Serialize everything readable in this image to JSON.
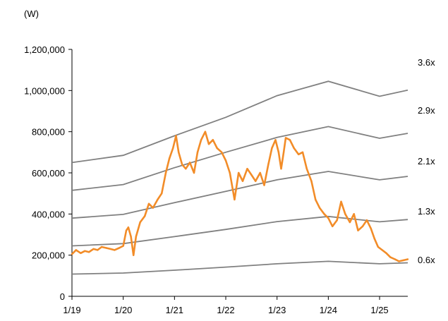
{
  "chart_data": {
    "type": "line",
    "unit_label": "(W)",
    "x_ticks": [
      "1/19",
      "1/20",
      "1/21",
      "1/22",
      "1/23",
      "1/24",
      "1/25"
    ],
    "x_range": [
      2019.0,
      2025.55
    ],
    "y_ticks": [
      0,
      200000,
      400000,
      600000,
      800000,
      1000000,
      1200000
    ],
    "y_tick_labels": [
      "0",
      "200,000",
      "400,000",
      "600,000",
      "800,000",
      "1,000,000",
      "1,200,000"
    ],
    "ylim": [
      0,
      1200000
    ],
    "grid": false,
    "legend": "none",
    "price_series": {
      "color": "#F28C28",
      "points": [
        [
          2019.0,
          205000
        ],
        [
          2019.08,
          225000
        ],
        [
          2019.17,
          210000
        ],
        [
          2019.25,
          220000
        ],
        [
          2019.33,
          215000
        ],
        [
          2019.42,
          230000
        ],
        [
          2019.5,
          225000
        ],
        [
          2019.58,
          240000
        ],
        [
          2019.67,
          235000
        ],
        [
          2019.75,
          230000
        ],
        [
          2019.83,
          225000
        ],
        [
          2019.92,
          235000
        ],
        [
          2020.0,
          245000
        ],
        [
          2020.06,
          320000
        ],
        [
          2020.1,
          335000
        ],
        [
          2020.15,
          290000
        ],
        [
          2020.2,
          200000
        ],
        [
          2020.25,
          290000
        ],
        [
          2020.33,
          360000
        ],
        [
          2020.42,
          390000
        ],
        [
          2020.5,
          450000
        ],
        [
          2020.58,
          430000
        ],
        [
          2020.67,
          470000
        ],
        [
          2020.75,
          500000
        ],
        [
          2020.83,
          600000
        ],
        [
          2020.9,
          670000
        ],
        [
          2020.97,
          720000
        ],
        [
          2021.03,
          780000
        ],
        [
          2021.08,
          700000
        ],
        [
          2021.15,
          640000
        ],
        [
          2021.22,
          620000
        ],
        [
          2021.3,
          650000
        ],
        [
          2021.38,
          600000
        ],
        [
          2021.45,
          700000
        ],
        [
          2021.52,
          760000
        ],
        [
          2021.6,
          800000
        ],
        [
          2021.67,
          740000
        ],
        [
          2021.75,
          760000
        ],
        [
          2021.83,
          720000
        ],
        [
          2021.92,
          700000
        ],
        [
          2022.0,
          660000
        ],
        [
          2022.08,
          600000
        ],
        [
          2022.17,
          470000
        ],
        [
          2022.25,
          600000
        ],
        [
          2022.33,
          560000
        ],
        [
          2022.42,
          620000
        ],
        [
          2022.5,
          590000
        ],
        [
          2022.58,
          560000
        ],
        [
          2022.67,
          600000
        ],
        [
          2022.75,
          540000
        ],
        [
          2022.83,
          640000
        ],
        [
          2022.9,
          720000
        ],
        [
          2022.97,
          760000
        ],
        [
          2023.03,
          700000
        ],
        [
          2023.08,
          620000
        ],
        [
          2023.13,
          700000
        ],
        [
          2023.17,
          770000
        ],
        [
          2023.25,
          760000
        ],
        [
          2023.33,
          720000
        ],
        [
          2023.42,
          690000
        ],
        [
          2023.5,
          700000
        ],
        [
          2023.58,
          620000
        ],
        [
          2023.67,
          560000
        ],
        [
          2023.75,
          470000
        ],
        [
          2023.83,
          430000
        ],
        [
          2023.92,
          400000
        ],
        [
          2024.0,
          380000
        ],
        [
          2024.08,
          340000
        ],
        [
          2024.17,
          370000
        ],
        [
          2024.25,
          460000
        ],
        [
          2024.33,
          400000
        ],
        [
          2024.42,
          360000
        ],
        [
          2024.5,
          400000
        ],
        [
          2024.58,
          320000
        ],
        [
          2024.67,
          340000
        ],
        [
          2024.75,
          370000
        ],
        [
          2024.83,
          330000
        ],
        [
          2024.9,
          280000
        ],
        [
          2024.97,
          240000
        ],
        [
          2025.05,
          225000
        ],
        [
          2025.13,
          210000
        ],
        [
          2025.21,
          190000
        ],
        [
          2025.3,
          180000
        ],
        [
          2025.38,
          170000
        ],
        [
          2025.46,
          175000
        ],
        [
          2025.55,
          180000
        ]
      ]
    },
    "band_series": [
      {
        "label": "3.6x",
        "color": "#808080",
        "points": [
          [
            2019.0,
            650000
          ],
          [
            2020.0,
            685000
          ],
          [
            2021.0,
            780000
          ],
          [
            2022.0,
            870000
          ],
          [
            2023.0,
            975000
          ],
          [
            2024.0,
            1045000
          ],
          [
            2025.0,
            972000
          ],
          [
            2025.55,
            1002000
          ]
        ]
      },
      {
        "label": "2.9x",
        "color": "#808080",
        "points": [
          [
            2019.0,
            515000
          ],
          [
            2020.0,
            543000
          ],
          [
            2021.0,
            625000
          ],
          [
            2022.0,
            700000
          ],
          [
            2023.0,
            772000
          ],
          [
            2024.0,
            825000
          ],
          [
            2025.0,
            768000
          ],
          [
            2025.55,
            792000
          ]
        ]
      },
      {
        "label": "2.1x",
        "color": "#808080",
        "points": [
          [
            2019.0,
            380000
          ],
          [
            2020.0,
            398000
          ],
          [
            2021.0,
            455000
          ],
          [
            2022.0,
            510000
          ],
          [
            2023.0,
            566000
          ],
          [
            2024.0,
            607000
          ],
          [
            2025.0,
            566000
          ],
          [
            2025.55,
            583000
          ]
        ]
      },
      {
        "label": "1.3x",
        "color": "#808080",
        "points": [
          [
            2019.0,
            245000
          ],
          [
            2020.0,
            256000
          ],
          [
            2021.0,
            290000
          ],
          [
            2022.0,
            325000
          ],
          [
            2023.0,
            363000
          ],
          [
            2024.0,
            388000
          ],
          [
            2025.0,
            362000
          ],
          [
            2025.55,
            373000
          ]
        ]
      },
      {
        "label": "0.6x",
        "color": "#808080",
        "points": [
          [
            2019.0,
            108000
          ],
          [
            2020.0,
            113000
          ],
          [
            2021.0,
            127000
          ],
          [
            2022.0,
            142000
          ],
          [
            2023.0,
            158000
          ],
          [
            2024.0,
            170000
          ],
          [
            2025.0,
            158000
          ],
          [
            2025.55,
            163000
          ]
        ]
      }
    ]
  }
}
